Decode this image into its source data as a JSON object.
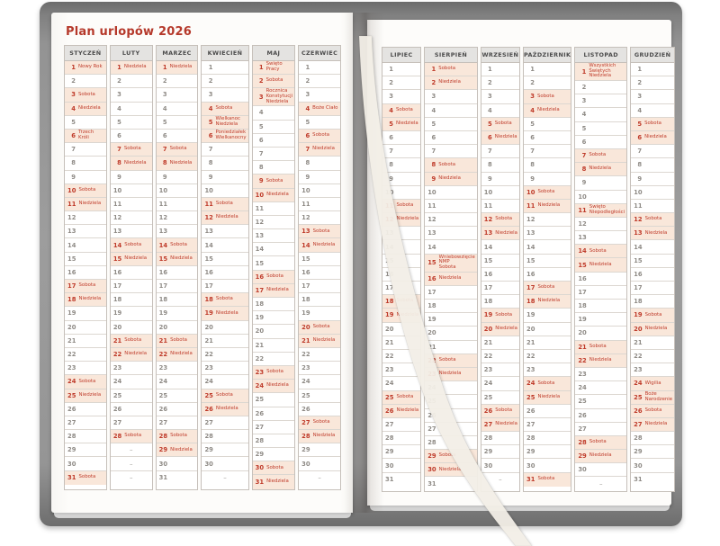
{
  "title": "Plan urlopów 2026",
  "colors": {
    "accent_red": "#b5382a",
    "highlight_bg": "#f9e7da",
    "header_bg": "#e4e3e1",
    "cover_gray": "#939393",
    "ribbon_cream": "#f3efe7"
  },
  "calendar": {
    "empty_day_marker": "–",
    "weekend_labels": {
      "saturday": "Sobota",
      "sunday": "Niedziela"
    },
    "left_months": [
      {
        "id": "styczen",
        "name": "STYCZEŃ",
        "days_in_month": 31,
        "special_days": {
          "1": "Nowy Rok",
          "3": "Sobota",
          "4": "Niedziela",
          "6": "Trzech Króli",
          "10": "Sobota",
          "11": "Niedziela",
          "17": "Sobota",
          "18": "Niedziela",
          "24": "Sobota",
          "25": "Niedziela",
          "31": "Sobota"
        }
      },
      {
        "id": "luty",
        "name": "LUTY",
        "days_in_month": 28,
        "special_days": {
          "1": "Niedziela",
          "7": "Sobota",
          "8": "Niedziela",
          "14": "Sobota",
          "15": "Niedziela",
          "21": "Sobota",
          "22": "Niedziela",
          "28": "Sobota"
        }
      },
      {
        "id": "marzec",
        "name": "MARZEC",
        "days_in_month": 31,
        "special_days": {
          "1": "Niedziela",
          "7": "Sobota",
          "8": "Niedziela",
          "14": "Sobota",
          "15": "Niedziela",
          "21": "Sobota",
          "22": "Niedziela",
          "28": "Sobota",
          "29": "Niedziela"
        }
      },
      {
        "id": "kwiecien",
        "name": "KWIECIEŃ",
        "days_in_month": 30,
        "special_days": {
          "4": "Sobota",
          "5": "Wielkanoc\nNiedziela",
          "6": "Poniedziałek\nWielkanocny",
          "11": "Sobota",
          "12": "Niedziela",
          "18": "Sobota",
          "19": "Niedziela",
          "25": "Sobota",
          "26": "Niedziela"
        }
      },
      {
        "id": "maj",
        "name": "MAJ",
        "days_in_month": 31,
        "special_days": {
          "1": "Święto Pracy",
          "2": "Sobota",
          "3": "Rocznica Konstytucji\nNiedziela",
          "9": "Sobota",
          "10": "Niedziela",
          "16": "Sobota",
          "17": "Niedziela",
          "23": "Sobota",
          "24": "Niedziela",
          "30": "Sobota",
          "31": "Niedziela"
        }
      },
      {
        "id": "czerwiec",
        "name": "CZERWIEC",
        "days_in_month": 30,
        "special_days": {
          "4": "Boże Ciało",
          "6": "Sobota",
          "7": "Niedziela",
          "13": "Sobota",
          "14": "Niedziela",
          "20": "Sobota",
          "21": "Niedziela",
          "27": "Sobota",
          "28": "Niedziela"
        }
      }
    ],
    "right_months": [
      {
        "id": "lipiec",
        "name": "LIPIEC",
        "days_in_month": 31,
        "special_days": {
          "4": "Sobota",
          "5": "Niedziela",
          "11": "Sobota",
          "12": "Niedziela",
          "18": "Sobota",
          "19": "Niedziela",
          "25": "Sobota",
          "26": "Niedziela"
        }
      },
      {
        "id": "sierpien",
        "name": "SIERPIEŃ",
        "days_in_month": 31,
        "special_days": {
          "1": "Sobota",
          "2": "Niedziela",
          "8": "Sobota",
          "9": "Niedziela",
          "15": "Wniebowzięcie NMP\nSobota",
          "16": "Niedziela",
          "22": "Sobota",
          "23": "Niedziela",
          "29": "Sobota",
          "30": "Niedziela"
        }
      },
      {
        "id": "wrzesien",
        "name": "WRZESIEŃ",
        "days_in_month": 30,
        "special_days": {
          "5": "Sobota",
          "6": "Niedziela",
          "12": "Sobota",
          "13": "Niedziela",
          "19": "Sobota",
          "20": "Niedziela",
          "26": "Sobota",
          "27": "Niedziela"
        }
      },
      {
        "id": "pazdziernik",
        "name": "PAŹDZIERNIK",
        "days_in_month": 31,
        "special_days": {
          "3": "Sobota",
          "4": "Niedziela",
          "10": "Sobota",
          "11": "Niedziela",
          "17": "Sobota",
          "18": "Niedziela",
          "24": "Sobota",
          "25": "Niedziela",
          "31": "Sobota"
        }
      },
      {
        "id": "listopad",
        "name": "LISTOPAD",
        "days_in_month": 30,
        "special_days": {
          "1": "Wszystkich Świętych\nNiedziela",
          "7": "Sobota",
          "8": "Niedziela",
          "11": "Święto Niepodległości",
          "14": "Sobota",
          "15": "Niedziela",
          "21": "Sobota",
          "22": "Niedziela",
          "28": "Sobota",
          "29": "Niedziela"
        }
      },
      {
        "id": "grudzien",
        "name": "GRUDZIEŃ",
        "days_in_month": 31,
        "special_days": {
          "5": "Sobota",
          "6": "Niedziela",
          "12": "Sobota",
          "13": "Niedziela",
          "19": "Sobota",
          "20": "Niedziela",
          "24": "Wigilia",
          "25": "Boże Narodzenie",
          "26": "Sobota",
          "27": "Niedziela"
        }
      }
    ]
  }
}
